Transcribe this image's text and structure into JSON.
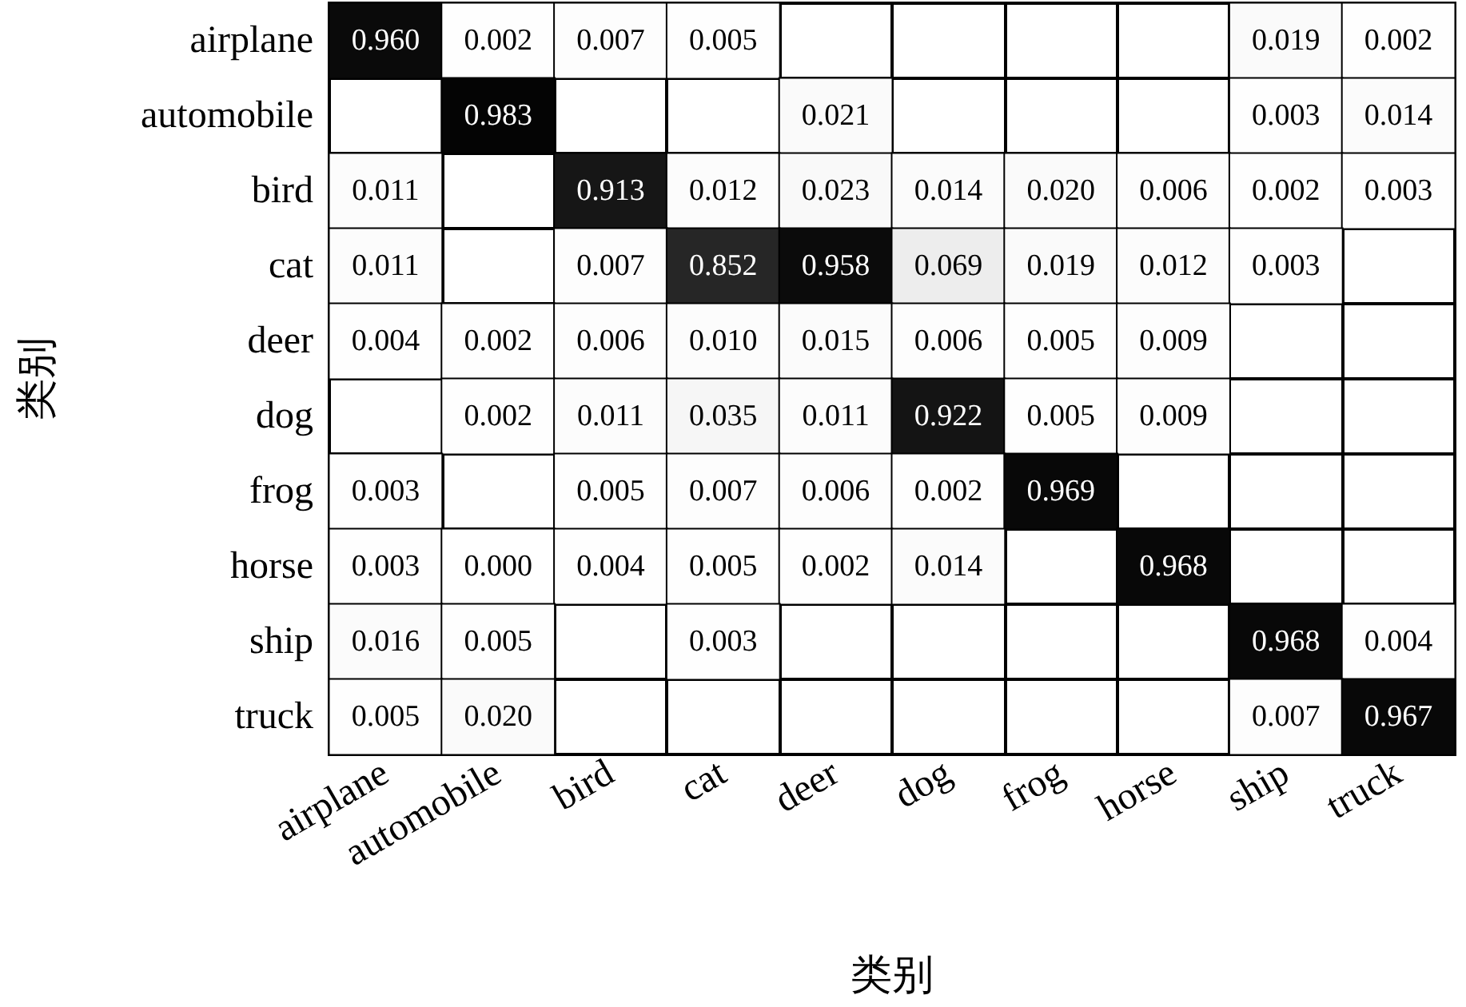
{
  "chart_data": {
    "type": "heatmap",
    "xlabel": "类别",
    "ylabel": "类别",
    "categories": [
      "airplane",
      "automobile",
      "bird",
      "cat",
      "deer",
      "dog",
      "frog",
      "horse",
      "ship",
      "truck"
    ],
    "y_categories": [
      "airplane",
      "automobile",
      "bird",
      "cat",
      "deer",
      "dog",
      "frog",
      "horse",
      "ship",
      "truck"
    ],
    "cells": [
      [
        0.96,
        0.002,
        0.007,
        0.005,
        null,
        null,
        null,
        null,
        0.019,
        0.002
      ],
      [
        null,
        0.983,
        null,
        null,
        0.021,
        null,
        null,
        null,
        0.003,
        0.014
      ],
      [
        0.011,
        null,
        0.913,
        0.012,
        0.023,
        0.014,
        0.02,
        0.006,
        0.002,
        0.003
      ],
      [
        0.011,
        null,
        0.007,
        0.852,
        0.958,
        0.069,
        0.019,
        0.012,
        0.003,
        null
      ],
      [
        0.004,
        0.002,
        0.006,
        0.01,
        0.015,
        0.006,
        0.005,
        0.009,
        null,
        null
      ],
      [
        null,
        0.002,
        0.011,
        0.035,
        0.011,
        0.922,
        0.005,
        0.009,
        null,
        null
      ],
      [
        0.003,
        null,
        0.005,
        0.007,
        0.006,
        0.002,
        0.969,
        null,
        null,
        null
      ],
      [
        0.003,
        0.0,
        0.004,
        0.005,
        0.002,
        0.014,
        null,
        0.968,
        null,
        null
      ],
      [
        0.016,
        0.005,
        null,
        0.003,
        null,
        null,
        null,
        null,
        0.968,
        0.004
      ],
      [
        0.005,
        0.02,
        null,
        null,
        null,
        null,
        null,
        null,
        0.007,
        0.967
      ]
    ],
    "cell_labels": [
      [
        "0.960",
        "0.002",
        "0.007",
        "0.005",
        null,
        null,
        null,
        null,
        "0.019",
        "0.002"
      ],
      [
        null,
        "0.983",
        null,
        null,
        "0.021",
        null,
        null,
        null,
        "0.003",
        "0.014"
      ],
      [
        "0.011",
        null,
        "0.913",
        "0.012",
        "0.023",
        "0.014",
        "0.020",
        "0.006",
        "0.002",
        "0.003"
      ],
      [
        "0.011",
        null,
        "0.007",
        "0.852",
        "0.958",
        "0.069",
        "0.019",
        "0.012",
        "0.003",
        null
      ],
      [
        "0.004",
        "0.002",
        "0.006",
        "0.010",
        "0.015",
        "0.006",
        "0.005",
        "0.009",
        null,
        null
      ],
      [
        null,
        "0.002",
        "0.011",
        "0.035",
        "0.011",
        "0.922",
        "0.005",
        "0.009",
        null,
        null
      ],
      [
        "0.003",
        null,
        "0.005",
        "0.007",
        "0.006",
        "0.002",
        "0.969",
        null,
        null,
        null
      ],
      [
        "0.003",
        "0.000",
        "0.004",
        "0.005",
        "0.002",
        "0.014",
        null,
        "0.968",
        null,
        null
      ],
      [
        "0.016",
        "0.005",
        null,
        "0.003",
        null,
        null,
        null,
        null,
        "0.968",
        "0.004"
      ],
      [
        "0.005",
        "0.020",
        null,
        null,
        null,
        null,
        null,
        null,
        "0.007",
        "0.967"
      ]
    ]
  }
}
